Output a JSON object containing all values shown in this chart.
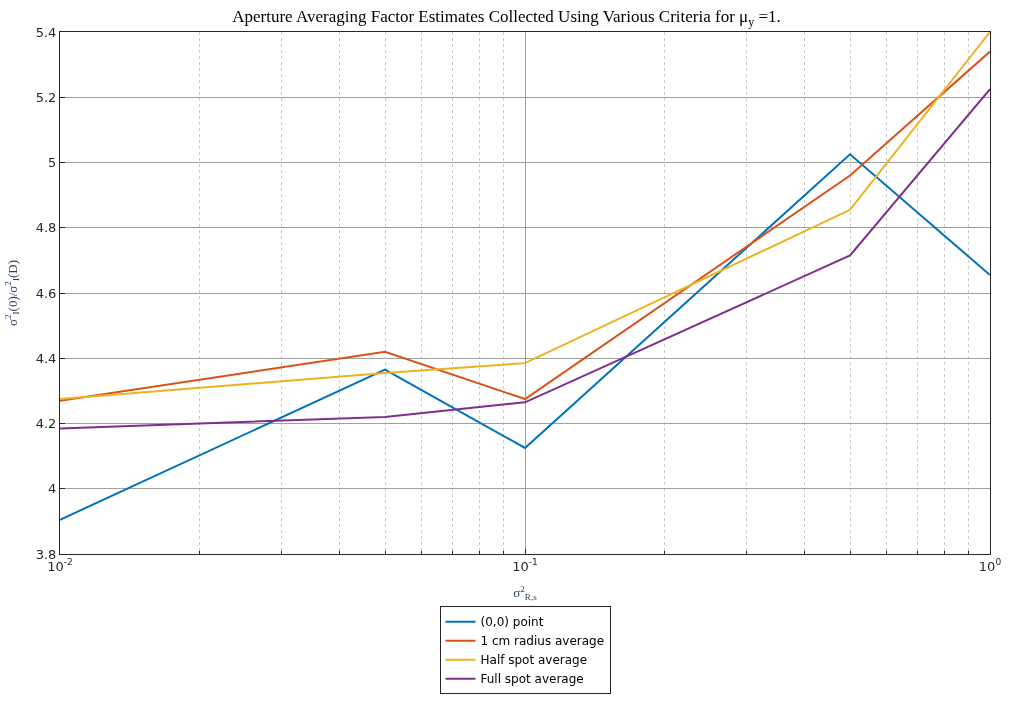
{
  "chart_data": {
    "type": "line",
    "title": "Aperture Averaging Factor Estimates Collected Using Various Criteria for μ$_{y}$ =1.",
    "xlabel": "σ$^{2}$$_{R,s}$",
    "ylabel": "σ$^{2}$$_{I}$(0)/σ$^{2}$$_{I}$(D)",
    "x": [
      0.01,
      0.05,
      0.1,
      0.5,
      1
    ],
    "series": [
      {
        "name": "(0,0) point",
        "color": "#0072bd",
        "values": [
          3.905,
          4.365,
          4.125,
          5.025,
          4.655
        ]
      },
      {
        "name": "1 cm radius average",
        "color": "#d95319",
        "values": [
          4.27,
          4.42,
          4.275,
          4.96,
          5.34
        ]
      },
      {
        "name": "Half spot average",
        "color": "#edb120",
        "values": [
          4.275,
          4.355,
          4.385,
          4.855,
          5.4
        ]
      },
      {
        "name": "Full spot average",
        "color": "#7e2f8e",
        "values": [
          4.185,
          4.22,
          4.265,
          4.715,
          5.225
        ]
      }
    ],
    "log": "x",
    "xlim": [
      0.01,
      1
    ],
    "ylim": [
      3.8,
      5.4
    ],
    "xticks": [
      {
        "value": 0.01,
        "label": "10$^{-2}$"
      },
      {
        "value": 0.1,
        "label": "10$^{-1}$"
      },
      {
        "value": 1,
        "label": "10$^{0}$"
      }
    ],
    "yticks": [
      3.8,
      4,
      4.2,
      4.4,
      4.6,
      4.8,
      5,
      5.2,
      5.4
    ],
    "grid": true,
    "legend": "bottom",
    "marker": "none",
    "line_style": "solid"
  }
}
